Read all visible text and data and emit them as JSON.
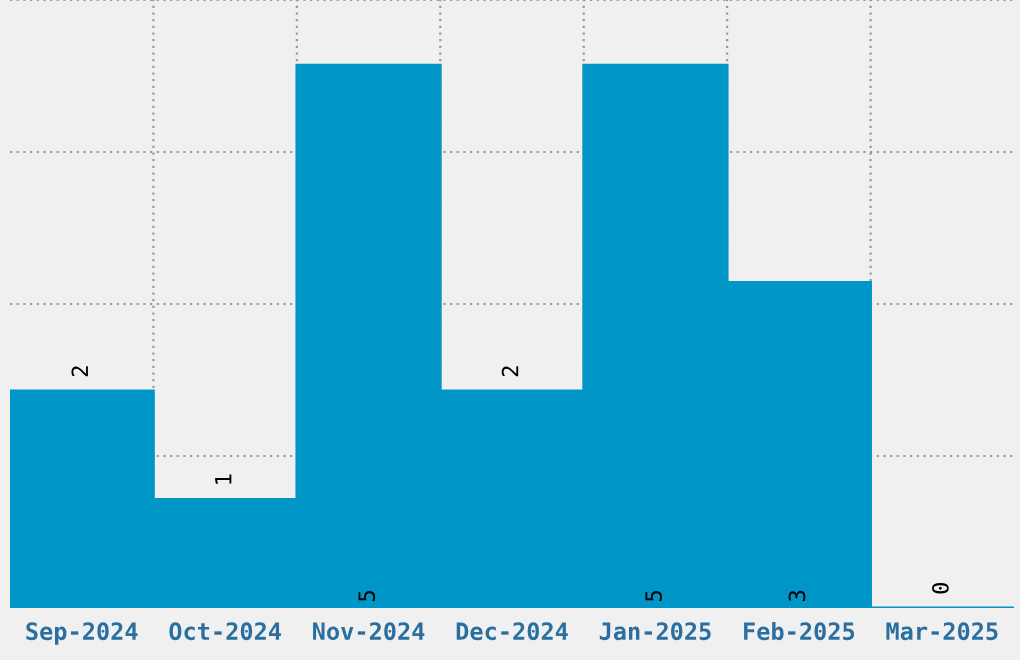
{
  "chart_data": {
    "type": "bar",
    "categories": [
      "Sep-2024",
      "Oct-2024",
      "Nov-2024",
      "Dec-2024",
      "Jan-2025",
      "Feb-2025",
      "Mar-2025"
    ],
    "values": [
      2,
      1,
      5,
      2,
      5,
      3,
      0
    ],
    "color": "#0096c8",
    "ylim": [
      0,
      5.6
    ],
    "tick_labels": "x",
    "grid": true,
    "data_labels": true
  }
}
